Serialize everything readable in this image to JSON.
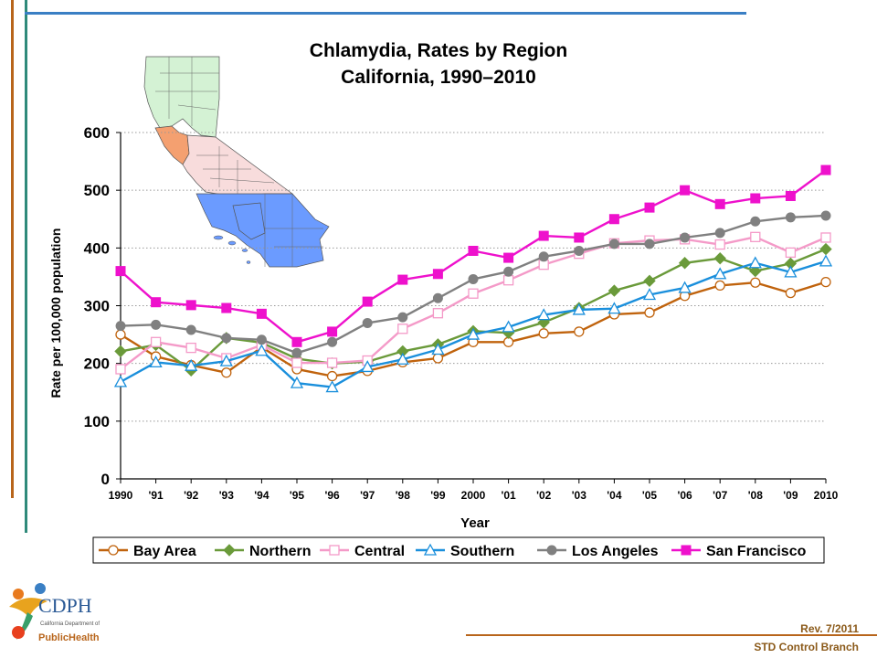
{
  "chart_data": {
    "type": "line",
    "title": "Chlamydia, Rates by Region",
    "subtitle": "California, 1990–2010",
    "xlabel": "Year",
    "ylabel": "Rate per 100,000 population",
    "ylim": [
      0,
      600
    ],
    "yticks": [
      "0",
      "100",
      "200",
      "300",
      "400",
      "500",
      "600"
    ],
    "categories": [
      "1990",
      "'91",
      "'92",
      "'93",
      "'94",
      "'95",
      "'96",
      "'97",
      "'98",
      "'99",
      "2000",
      "'01",
      "'02",
      "'03",
      "'04",
      "'05",
      "'06",
      "'07",
      "'08",
      "'09",
      "2010"
    ],
    "grid": "horizontal dotted",
    "legend_position": "bottom",
    "series": [
      {
        "name": "Bay Area",
        "color": "#c0630d",
        "marker": "circle-open",
        "values": [
          250,
          212,
          197,
          184,
          228,
          190,
          178,
          187,
          202,
          209,
          237,
          237,
          252,
          255,
          285,
          288,
          317,
          335,
          340,
          322,
          341
        ]
      },
      {
        "name": "Northern",
        "color": "#6a9a3a",
        "marker": "diamond-filled",
        "values": [
          221,
          232,
          188,
          244,
          236,
          208,
          200,
          203,
          221,
          233,
          256,
          253,
          271,
          296,
          326,
          343,
          374,
          382,
          360,
          373,
          398
        ]
      },
      {
        "name": "Central",
        "color": "#f49ac8",
        "marker": "square-open",
        "values": [
          190,
          237,
          227,
          209,
          232,
          201,
          201,
          205,
          260,
          287,
          321,
          344,
          371,
          390,
          408,
          413,
          415,
          406,
          419,
          392,
          418
        ]
      },
      {
        "name": "Southern",
        "color": "#1a8fdc",
        "marker": "triangle-open",
        "values": [
          168,
          202,
          196,
          204,
          222,
          166,
          159,
          194,
          207,
          224,
          250,
          263,
          284,
          293,
          295,
          319,
          331,
          355,
          374,
          358,
          377
        ]
      },
      {
        "name": "Los Angeles",
        "color": "#808080",
        "marker": "circle-filled",
        "values": [
          265,
          267,
          258,
          244,
          241,
          218,
          237,
          270,
          280,
          313,
          346,
          359,
          385,
          395,
          407,
          407,
          418,
          426,
          446,
          453,
          456
        ]
      },
      {
        "name": "San Francisco",
        "color": "#ee11cc",
        "marker": "square-filled",
        "values": [
          360,
          306,
          301,
          296,
          286,
          237,
          255,
          307,
          345,
          355,
          395,
          383,
          421,
          418,
          450,
          470,
          500,
          476,
          486,
          490,
          535
        ]
      }
    ]
  },
  "footer": {
    "revision": "Rev. 7/2011",
    "branch": "STD Control Branch"
  },
  "logo": {
    "name": "CDPH",
    "line1": "California Department of",
    "line2": "PublicHealth"
  },
  "theme": {
    "brown": "#b8651b",
    "teal": "#2f8a7a",
    "blue": "#3a7fc4"
  }
}
